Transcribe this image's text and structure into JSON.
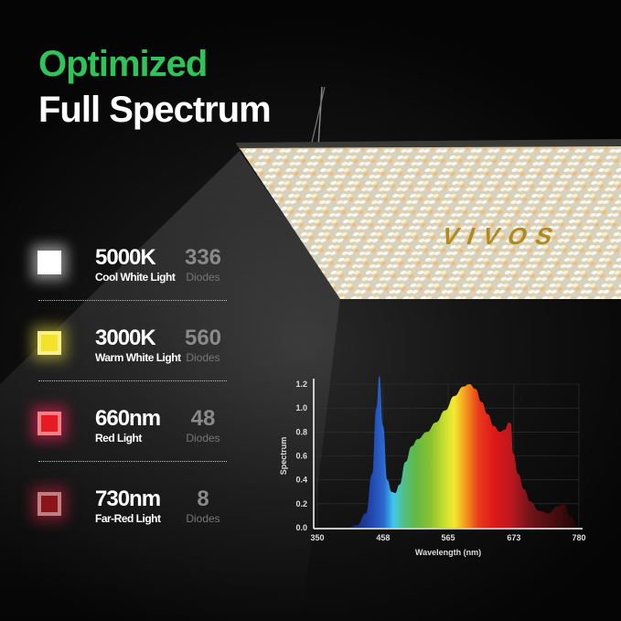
{
  "heading": {
    "line1": "Optimized",
    "line2": "Full Spectrum",
    "accent": "#2fc35a"
  },
  "product": {
    "logo": "VIVOS"
  },
  "lights": [
    {
      "label": "5000K",
      "sub": "Cool White Light",
      "count": "336",
      "unit": "Diodes",
      "color": "#ffffff",
      "glow": "#ffffff"
    },
    {
      "label": "3000K",
      "sub": "Warm White Light",
      "count": "560",
      "unit": "Diodes",
      "color": "#f2e22a",
      "glow": "#d8d040"
    },
    {
      "label": "660nm",
      "sub": "Red Light",
      "count": "48",
      "unit": "Diodes",
      "color": "#e81a22",
      "glow": "#ff2060"
    },
    {
      "label": "730nm",
      "sub": "Far-Red Light",
      "count": "8",
      "unit": "Diodes",
      "color": "#8a1418",
      "glow": "#c02040"
    }
  ],
  "chart_data": {
    "type": "area",
    "xlabel": "Wavelength (nm)",
    "ylabel": "Spectrum",
    "xlim": [
      350,
      780
    ],
    "ylim": [
      0,
      1.2
    ],
    "xticks": [
      "350",
      "458",
      "565",
      "673",
      "780"
    ],
    "yticks": [
      "0.0",
      "0.2",
      "0.4",
      "0.6",
      "0.8",
      "1.0",
      "1.2"
    ],
    "grid": true,
    "x": [
      400,
      415,
      430,
      440,
      447,
      452,
      458,
      465,
      472,
      478,
      485,
      495,
      505,
      515,
      530,
      545,
      560,
      575,
      590,
      600,
      610,
      620,
      630,
      640,
      650,
      658,
      665,
      668,
      672,
      680,
      690,
      700,
      715,
      730,
      745,
      755,
      765,
      780
    ],
    "y": [
      0,
      0.02,
      0.12,
      0.45,
      1.0,
      1.27,
      0.85,
      0.4,
      0.3,
      0.29,
      0.36,
      0.55,
      0.68,
      0.74,
      0.8,
      0.88,
      0.98,
      1.1,
      1.18,
      1.2,
      1.16,
      1.05,
      0.95,
      0.85,
      0.8,
      0.82,
      0.88,
      0.87,
      0.62,
      0.45,
      0.32,
      0.22,
      0.14,
      0.12,
      0.18,
      0.2,
      0.1,
      0
    ]
  }
}
